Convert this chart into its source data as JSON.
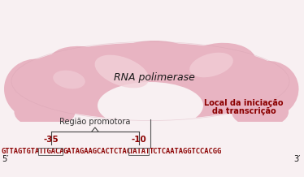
{
  "background_color": "#f8f0f2",
  "rna_pol_label": "RNA polimerase",
  "dna_sequence_left": "GTTAGTGTA",
  "dna_box1": "TTGACA",
  "dna_middle": "GATAGAAGCACTCTAC",
  "dna_box2": "TATAT",
  "dna_right": "TCTCAATAGGTCCACGG",
  "dna_color": "#8b0000",
  "label_35": "-35",
  "label_10": "-10",
  "region_label": "Região promotora",
  "local_label_line1": "Local da iniciação",
  "local_label_line2": "da transcrição",
  "prime5": "5′",
  "prime3": "3′",
  "blob_main_color": "#e8b4c2",
  "blob_light_color": "#f2d0d8",
  "blob_edge_color": "#d4909a"
}
